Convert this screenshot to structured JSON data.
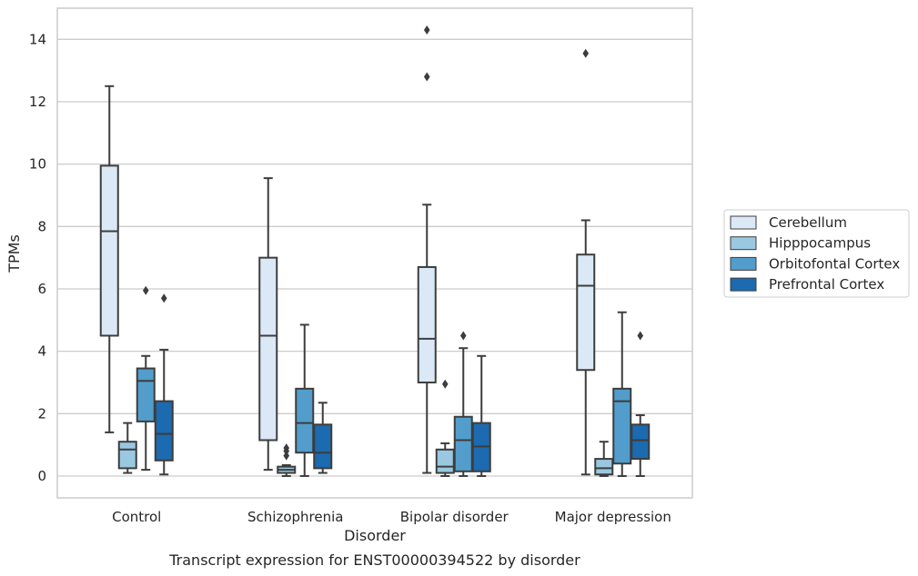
{
  "chart_data": {
    "type": "box",
    "xlabel": "Disorder",
    "ylabel": "TPMs",
    "caption": "Transcript expression for ENST00000394522 by disorder",
    "ylim": [
      -0.7,
      15.0
    ],
    "yticks": [
      0,
      2,
      4,
      6,
      8,
      10,
      12,
      14
    ],
    "grid": true,
    "legend_position": "right",
    "categories": [
      "Control",
      "Schizophrenia",
      "Bipolar disorder",
      "Major depression"
    ],
    "series": [
      {
        "name": "Cerebellum",
        "color": "#dbe9f6",
        "boxes": [
          {
            "whisker_low": 1.4,
            "q1": 4.5,
            "median": 7.85,
            "q3": 9.95,
            "whisker_high": 12.5,
            "outliers": []
          },
          {
            "whisker_low": 0.2,
            "q1": 1.15,
            "median": 4.5,
            "q3": 7.0,
            "whisker_high": 9.55,
            "outliers": []
          },
          {
            "whisker_low": 0.1,
            "q1": 3.0,
            "median": 4.4,
            "q3": 6.7,
            "whisker_high": 8.7,
            "outliers": [
              12.8,
              14.3
            ]
          },
          {
            "whisker_low": 0.05,
            "q1": 3.4,
            "median": 6.1,
            "q3": 7.1,
            "whisker_high": 8.2,
            "outliers": [
              13.55
            ]
          }
        ]
      },
      {
        "name": "Hipppocampus",
        "color": "#9ac8e0",
        "boxes": [
          {
            "whisker_low": 0.1,
            "q1": 0.25,
            "median": 0.85,
            "q3": 1.1,
            "whisker_high": 1.7,
            "outliers": []
          },
          {
            "whisker_low": 0.0,
            "q1": 0.1,
            "median": 0.2,
            "q3": 0.3,
            "whisker_high": 0.35,
            "outliers": [
              0.65,
              0.8,
              0.9
            ]
          },
          {
            "whisker_low": 0.0,
            "q1": 0.1,
            "median": 0.3,
            "q3": 0.85,
            "whisker_high": 1.05,
            "outliers": [
              2.95
            ]
          },
          {
            "whisker_low": 0.0,
            "q1": 0.05,
            "median": 0.25,
            "q3": 0.55,
            "whisker_high": 1.1,
            "outliers": []
          }
        ]
      },
      {
        "name": "Orbitofontal Cortex",
        "color": "#529dcc",
        "boxes": [
          {
            "whisker_low": 0.2,
            "q1": 1.75,
            "median": 3.05,
            "q3": 3.45,
            "whisker_high": 3.85,
            "outliers": [
              5.95
            ]
          },
          {
            "whisker_low": 0.0,
            "q1": 0.75,
            "median": 1.7,
            "q3": 2.8,
            "whisker_high": 4.85,
            "outliers": []
          },
          {
            "whisker_low": 0.0,
            "q1": 0.15,
            "median": 1.15,
            "q3": 1.9,
            "whisker_high": 4.1,
            "outliers": [
              4.5
            ]
          },
          {
            "whisker_low": 0.0,
            "q1": 0.4,
            "median": 2.4,
            "q3": 2.8,
            "whisker_high": 5.25,
            "outliers": []
          }
        ]
      },
      {
        "name": "Prefrontal Cortex",
        "color": "#1c6aaf",
        "boxes": [
          {
            "whisker_low": 0.05,
            "q1": 0.5,
            "median": 1.35,
            "q3": 2.4,
            "whisker_high": 4.05,
            "outliers": [
              5.7
            ]
          },
          {
            "whisker_low": 0.1,
            "q1": 0.25,
            "median": 0.75,
            "q3": 1.65,
            "whisker_high": 2.35,
            "outliers": []
          },
          {
            "whisker_low": 0.0,
            "q1": 0.15,
            "median": 0.95,
            "q3": 1.7,
            "whisker_high": 3.85,
            "outliers": []
          },
          {
            "whisker_low": 0.0,
            "q1": 0.55,
            "median": 1.15,
            "q3": 1.65,
            "whisker_high": 1.95,
            "outliers": [
              4.5
            ]
          }
        ]
      }
    ]
  }
}
